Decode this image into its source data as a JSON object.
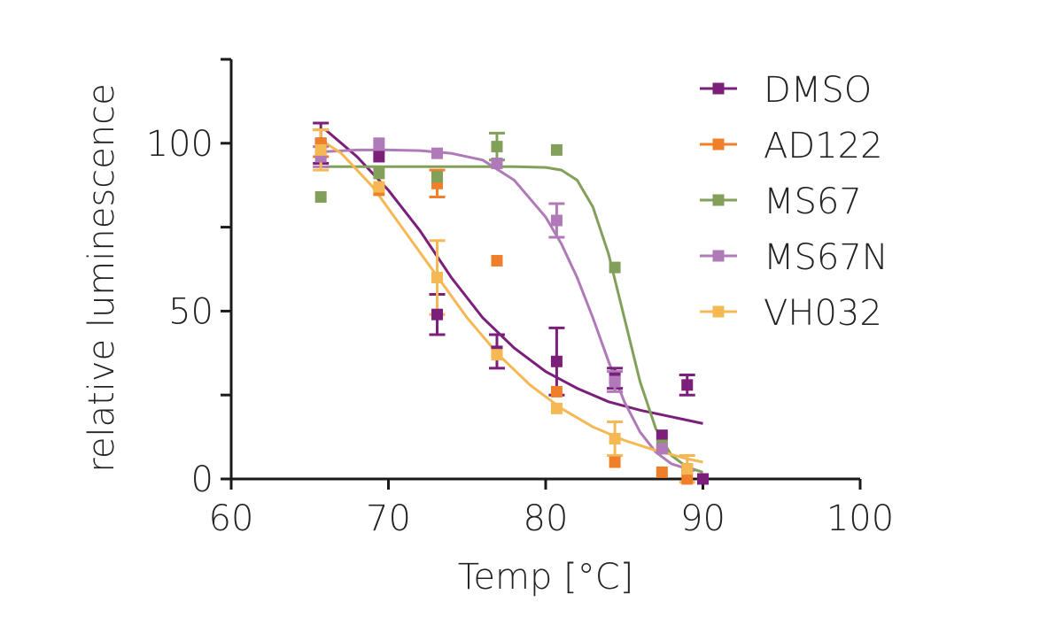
{
  "chart_data": {
    "type": "scatter",
    "title": "",
    "xlabel": "Temp [°C]",
    "ylabel": "relative luminescence",
    "xlim": [
      60,
      100
    ],
    "ylim": [
      0,
      125
    ],
    "x_ticks": [
      60,
      70,
      80,
      90,
      100
    ],
    "y_ticks": [
      0,
      50,
      100
    ],
    "y_minor_ticks": [
      25,
      75,
      125
    ],
    "legend_position": "top-right",
    "series": [
      {
        "name": "DMSO",
        "color": "#7b1f7a",
        "points": [
          {
            "x": 65.7,
            "y": 100,
            "err": 6
          },
          {
            "x": 69.4,
            "y": 96,
            "err": 0
          },
          {
            "x": 73.1,
            "y": 49,
            "err": 6
          },
          {
            "x": 76.9,
            "y": 38,
            "err": 5
          },
          {
            "x": 80.7,
            "y": 35,
            "err": 10
          },
          {
            "x": 84.4,
            "y": 30,
            "err": 3
          },
          {
            "x": 87.4,
            "y": 13,
            "err": 0
          },
          {
            "x": 89.0,
            "y": 28,
            "err": 3
          },
          {
            "x": 90.0,
            "y": 0,
            "err": 0
          }
        ],
        "fit": [
          [
            66.0,
            104
          ],
          [
            68,
            96
          ],
          [
            70,
            86
          ],
          [
            72,
            74
          ],
          [
            74,
            60
          ],
          [
            76,
            48
          ],
          [
            78,
            39
          ],
          [
            80,
            32
          ],
          [
            82,
            27
          ],
          [
            84,
            23
          ],
          [
            86,
            20.5
          ],
          [
            88,
            18.5
          ],
          [
            90,
            16.5
          ]
        ]
      },
      {
        "name": "AD122",
        "color": "#f07f2a",
        "points": [
          {
            "x": 65.7,
            "y": 100,
            "err": 4
          },
          {
            "x": 69.4,
            "y": 86,
            "err": 0
          },
          {
            "x": 73.1,
            "y": 88,
            "err": 4
          },
          {
            "x": 76.9,
            "y": 65,
            "err": 0
          },
          {
            "x": 80.7,
            "y": 26,
            "err": 0
          },
          {
            "x": 84.4,
            "y": 5,
            "err": 0
          },
          {
            "x": 87.4,
            "y": 2,
            "err": 0
          },
          {
            "x": 89.0,
            "y": 0,
            "err": 0
          }
        ],
        "fit": []
      },
      {
        "name": "MS67",
        "color": "#82a05a",
        "points": [
          {
            "x": 65.7,
            "y": 84,
            "err": 0
          },
          {
            "x": 69.4,
            "y": 91,
            "err": 0
          },
          {
            "x": 73.1,
            "y": 90,
            "err": 0
          },
          {
            "x": 76.9,
            "y": 99,
            "err": 4
          },
          {
            "x": 80.7,
            "y": 98,
            "err": 0
          },
          {
            "x": 84.4,
            "y": 63,
            "err": 0
          },
          {
            "x": 87.4,
            "y": 10,
            "err": 0
          },
          {
            "x": 89.0,
            "y": 3,
            "err": 0
          }
        ],
        "fit": [
          [
            66.0,
            93
          ],
          [
            70,
            93
          ],
          [
            74,
            93
          ],
          [
            78,
            93
          ],
          [
            80,
            92.8
          ],
          [
            81,
            92
          ],
          [
            82,
            89
          ],
          [
            83,
            81
          ],
          [
            84,
            67
          ],
          [
            85,
            48
          ],
          [
            86,
            29
          ],
          [
            87,
            15
          ],
          [
            88,
            7
          ],
          [
            89,
            3.5
          ],
          [
            90,
            2
          ]
        ]
      },
      {
        "name": "MS67N",
        "color": "#b07ab8",
        "points": [
          {
            "x": 65.7,
            "y": 96,
            "err": 3
          },
          {
            "x": 69.4,
            "y": 100,
            "err": 0
          },
          {
            "x": 73.1,
            "y": 97,
            "err": 0
          },
          {
            "x": 76.9,
            "y": 94,
            "err": 0
          },
          {
            "x": 80.7,
            "y": 77,
            "err": 5
          },
          {
            "x": 84.4,
            "y": 29,
            "err": 3
          },
          {
            "x": 87.4,
            "y": 9,
            "err": 0
          },
          {
            "x": 89.0,
            "y": 3,
            "err": 0
          }
        ],
        "fit": [
          [
            66.0,
            97.5
          ],
          [
            68,
            98
          ],
          [
            70,
            98
          ],
          [
            72,
            97.8
          ],
          [
            74,
            97
          ],
          [
            76,
            95
          ],
          [
            78,
            89
          ],
          [
            80,
            78
          ],
          [
            81,
            70
          ],
          [
            82,
            60
          ],
          [
            83,
            48
          ],
          [
            84,
            35
          ],
          [
            85,
            23
          ],
          [
            86,
            14
          ],
          [
            87,
            8
          ],
          [
            88,
            4.5
          ],
          [
            89,
            3
          ],
          [
            89.5,
            2.5
          ]
        ]
      },
      {
        "name": "VH032",
        "color": "#f5b853",
        "points": [
          {
            "x": 65.7,
            "y": 98,
            "err": 6
          },
          {
            "x": 69.4,
            "y": 87,
            "err": 0
          },
          {
            "x": 73.1,
            "y": 60,
            "err": 11
          },
          {
            "x": 76.9,
            "y": 37,
            "err": 0
          },
          {
            "x": 80.7,
            "y": 21,
            "err": 0
          },
          {
            "x": 84.4,
            "y": 12,
            "err": 5
          },
          {
            "x": 89.0,
            "y": 3,
            "err": 4
          }
        ],
        "fit": [
          [
            65.7,
            101
          ],
          [
            67,
            97
          ],
          [
            69,
            87
          ],
          [
            71,
            74
          ],
          [
            73,
            61
          ],
          [
            75,
            48
          ],
          [
            77,
            37
          ],
          [
            79,
            28
          ],
          [
            81,
            21
          ],
          [
            83,
            15.5
          ],
          [
            85,
            11.5
          ],
          [
            87,
            8.5
          ],
          [
            89,
            6
          ],
          [
            90,
            5
          ]
        ]
      }
    ]
  }
}
